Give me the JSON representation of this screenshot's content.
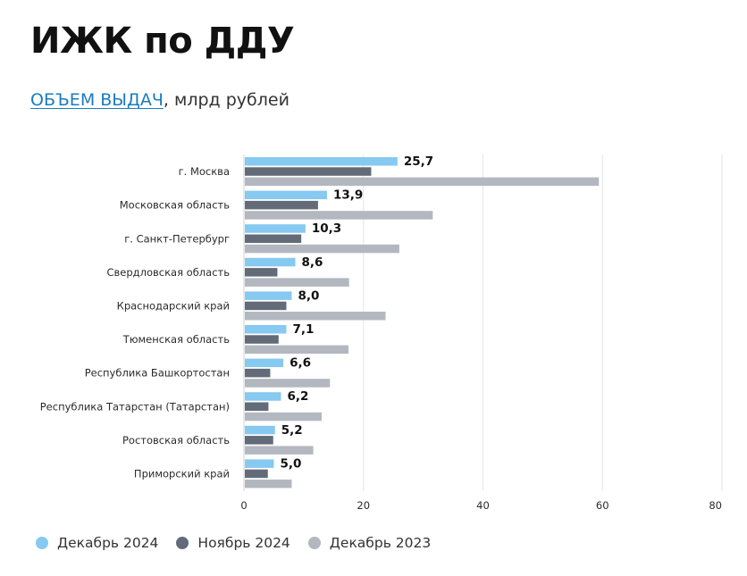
{
  "header": {
    "title": "ИЖК по ДДУ",
    "subtitle_link": "ОБЪЕМ ВЫДАЧ",
    "subtitle_rest": ", млрд рублей"
  },
  "colors": {
    "series_1": "#86c9f1",
    "series_2": "#646b78",
    "series_3": "#b3b8c0",
    "grid": "#e6e6e6",
    "axis": "#d0d0d0"
  },
  "chart_data": {
    "type": "bar",
    "orientation": "horizontal",
    "title": "ИЖК по ДДУ",
    "subtitle": "ОБЪЕМ ВЫДАЧ, млрд рублей",
    "xlim": [
      0,
      80
    ],
    "xticks": [
      0,
      20,
      40,
      60,
      80
    ],
    "xtick_labels": [
      "0",
      "20",
      "40",
      "60",
      "80"
    ],
    "grid": true,
    "legend_position": "bottom-left",
    "categories": [
      "г. Москва",
      "Московская область",
      "г. Санкт-Петербург",
      "Свердловская область",
      "Краснодарский край",
      "Тюменская область",
      "Республика Башкортостан",
      "Республика Татарстан (Татарстан)",
      "Ростовская область",
      "Приморский край"
    ],
    "series": [
      {
        "name": "Декабрь 2024",
        "values": [
          25.7,
          13.9,
          10.3,
          8.6,
          8.0,
          7.1,
          6.6,
          6.2,
          5.2,
          5.0
        ],
        "labels": [
          "25,7",
          "13,9",
          "10,3",
          "8,6",
          "8,0",
          "7,1",
          "6,6",
          "6,2",
          "5,2",
          "5,0"
        ]
      },
      {
        "name": "Ноябрь 2024",
        "values": [
          21.3,
          12.4,
          9.6,
          5.6,
          7.1,
          5.8,
          4.4,
          4.1,
          4.9,
          4.0
        ]
      },
      {
        "name": "Декабрь 2023",
        "values": [
          59.4,
          31.6,
          26.0,
          17.6,
          23.7,
          17.5,
          14.4,
          13.0,
          11.6,
          8.0
        ]
      }
    ]
  }
}
